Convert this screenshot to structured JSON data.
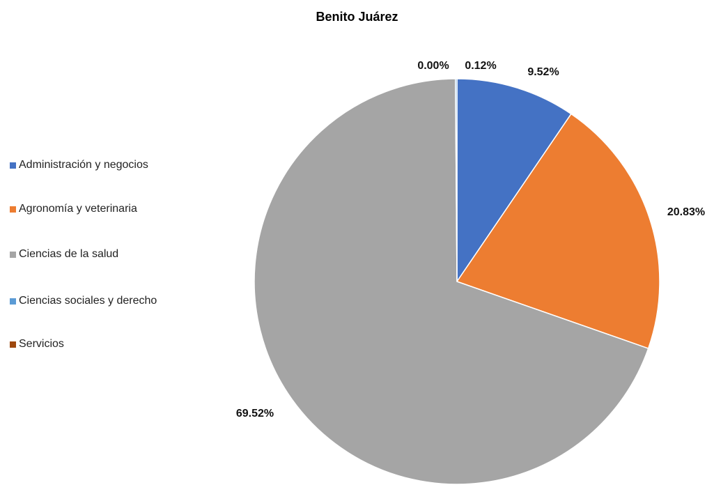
{
  "chart_data": {
    "type": "pie",
    "title": "Benito Juárez",
    "categories": [
      "Administración y negocios",
      "Agronomía y veterinaria",
      "Ciencias de la salud",
      "Ciencias sociales y derecho",
      "Servicios"
    ],
    "values": [
      9.52,
      20.83,
      69.52,
      0.12,
      0.0
    ],
    "data_labels": [
      "9.52%",
      "20.83%",
      "69.52%",
      "0.12%",
      "0.00%"
    ],
    "colors": [
      "#4472C4",
      "#ED7D31",
      "#A5A5A5",
      "#5B9BD5",
      "#9E480E"
    ],
    "legend_position": "left",
    "slice_order": "clockwise from top",
    "unit": "%"
  }
}
